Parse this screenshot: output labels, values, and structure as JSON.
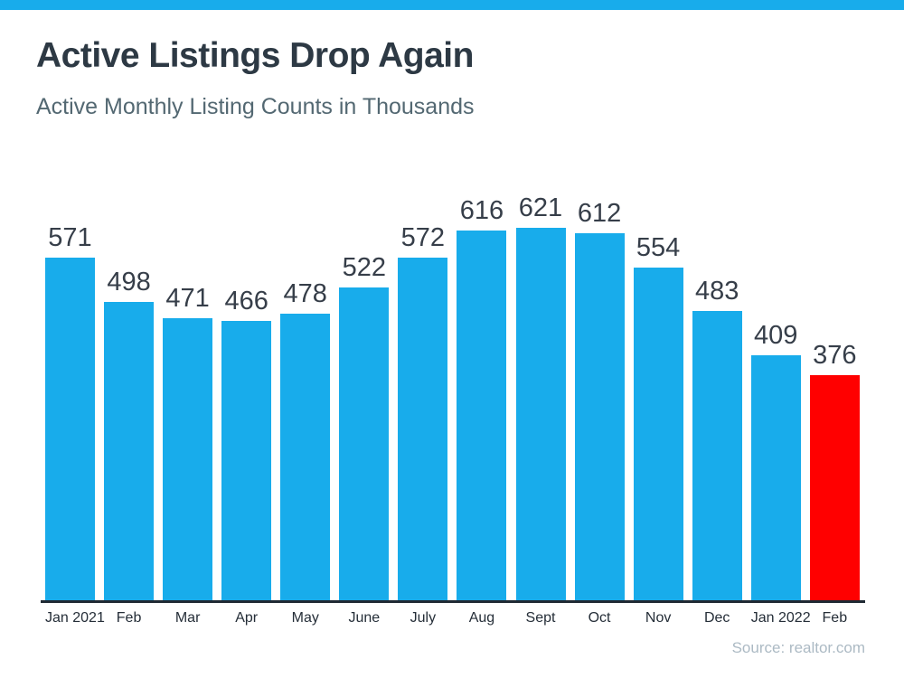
{
  "header": {
    "title": "Active Listings Drop Again",
    "subtitle": "Active Monthly Listing Counts in Thousands"
  },
  "footer": {
    "source": "Source: realtor.com"
  },
  "colors": {
    "accent_blue": "#18ACEB",
    "highlight_red": "#FF0000",
    "title_text": "#2D3944",
    "subtitle_text": "#536872",
    "value_label": "#363E49",
    "month_label": "#252E38",
    "axis_line": "#1F2933",
    "source_text": "#ACBAC4"
  },
  "chart_data": {
    "type": "bar",
    "title": "Active Listings Drop Again",
    "subtitle": "Active Monthly Listing Counts in Thousands",
    "categories": [
      "Jan 2021",
      "Feb",
      "Mar",
      "Apr",
      "May",
      "June",
      "July",
      "Aug",
      "Sept",
      "Oct",
      "Nov",
      "Dec",
      "Jan 2022",
      "Feb"
    ],
    "values": [
      571,
      498,
      471,
      466,
      478,
      522,
      572,
      616,
      621,
      612,
      554,
      483,
      409,
      376
    ],
    "highlight_index": 13,
    "value_labels": true,
    "grid": false,
    "legend": false,
    "xlabel": "",
    "ylabel": "",
    "ylim": [
      0,
      621
    ],
    "source": "Source: realtor.com"
  }
}
